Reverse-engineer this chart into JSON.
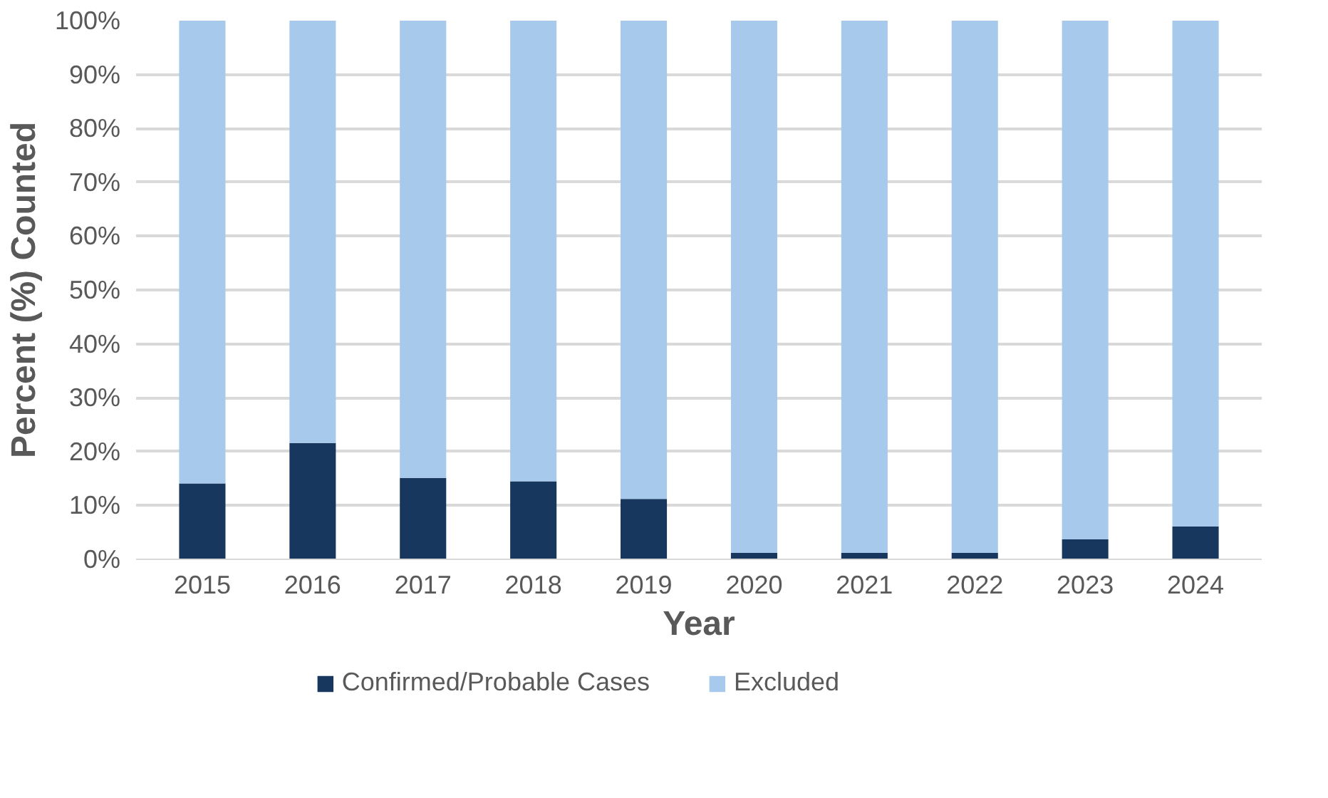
{
  "chart_data": {
    "type": "bar",
    "stacked": true,
    "xlabel": "Year",
    "ylabel": "Percent (%) Counted",
    "categories": [
      "2015",
      "2016",
      "2017",
      "2018",
      "2019",
      "2020",
      "2021",
      "2022",
      "2023",
      "2024"
    ],
    "series": [
      {
        "name": "Confirmed/Probable Cases",
        "color": "#17375e",
        "values": [
          14.1,
          21.6,
          15.1,
          14.5,
          11.2,
          1.2,
          1.2,
          1.2,
          3.7,
          6.1
        ]
      },
      {
        "name": "Excluded",
        "color": "#a6c9ec",
        "values": [
          85.9,
          78.4,
          84.9,
          85.5,
          88.8,
          98.8,
          98.8,
          98.8,
          96.3,
          93.9
        ]
      }
    ],
    "ylim": [
      0,
      100
    ],
    "yticks": [
      {
        "value": 0,
        "label": "0%"
      },
      {
        "value": 10,
        "label": "10%"
      },
      {
        "value": 20,
        "label": "20%"
      },
      {
        "value": 30,
        "label": "30%"
      },
      {
        "value": 40,
        "label": "40%"
      },
      {
        "value": 50,
        "label": "50%"
      },
      {
        "value": 60,
        "label": "60%"
      },
      {
        "value": 70,
        "label": "70%"
      },
      {
        "value": 80,
        "label": "80%"
      },
      {
        "value": 90,
        "label": "90%"
      },
      {
        "value": 100,
        "label": "100%"
      }
    ],
    "grid": "y",
    "legend": "bottom"
  }
}
